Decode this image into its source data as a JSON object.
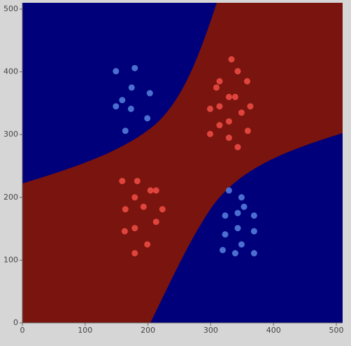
{
  "chart_data": {
    "type": "scatter",
    "xlim": [
      0,
      510
    ],
    "ylim": [
      0,
      510
    ],
    "xticks": [
      0,
      100,
      200,
      300,
      400,
      500
    ],
    "yticks": [
      0,
      100,
      200,
      300,
      400,
      500
    ],
    "series": [
      {
        "color": "#4a6fd0",
        "x": [
          149,
          179,
          174,
          203,
          159,
          149,
          173,
          199,
          164,
          329,
          349,
          353,
          343,
          323,
          369,
          343,
          369,
          323,
          349,
          319,
          339,
          369
        ],
        "values": [
          401,
          406,
          375,
          366,
          355,
          345,
          341,
          326,
          306,
          211,
          200,
          185,
          175,
          171,
          171,
          151,
          146,
          141,
          125,
          116,
          111,
          111
        ]
      },
      {
        "color": "#e0453d",
        "x": [
          333,
          343,
          314,
          358,
          309,
          329,
          339,
          314,
          363,
          299,
          349,
          329,
          314,
          359,
          299,
          329,
          343,
          159,
          183,
          204,
          213,
          179,
          193,
          164,
          223,
          213,
          179,
          163,
          199,
          179
        ],
        "values": [
          420,
          401,
          385,
          385,
          375,
          360,
          360,
          345,
          345,
          341,
          335,
          321,
          315,
          306,
          301,
          295,
          280,
          226,
          226,
          211,
          211,
          200,
          185,
          181,
          181,
          161,
          151,
          146,
          125,
          111
        ]
      }
    ]
  }
}
